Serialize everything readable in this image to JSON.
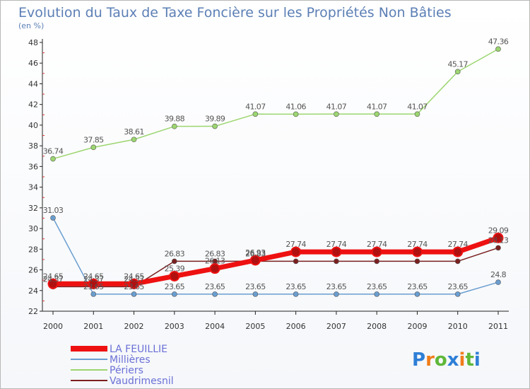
{
  "chart_data": {
    "type": "line",
    "title": "Evolution du Taux de Taxe Foncière sur les Propriétés Non Bâties",
    "subtitle": "(en %)",
    "x": [
      "2000",
      "2001",
      "2002",
      "2003",
      "2004",
      "2005",
      "2006",
      "2007",
      "2008",
      "2009",
      "2010",
      "2011"
    ],
    "ylim": [
      22,
      48
    ],
    "yticks": [
      "22",
      "24",
      "26",
      "28",
      "30",
      "32",
      "34",
      "36",
      "38",
      "40",
      "42",
      "44",
      "46",
      "48"
    ],
    "grid": false,
    "legend_position": "bottom-left",
    "series": [
      {
        "name": "Vaudrimesnil",
        "color": "#7a1f1f",
        "width": 1.5,
        "marker": 3.5,
        "values": [
          24.37,
          24.37,
          24.37,
          26.83,
          26.83,
          26.83,
          26.83,
          26.83,
          26.83,
          26.83,
          26.83,
          28.13
        ],
        "labels": [
          "24.37",
          "24.37",
          "24.37",
          "26.83",
          "26.83",
          "26.83",
          "",
          "",
          "",
          "",
          "",
          "28.13"
        ]
      },
      {
        "name": "Millières",
        "color": "#6a9ed0",
        "width": 1.5,
        "marker": 3.5,
        "values": [
          31.03,
          23.65,
          23.65,
          23.65,
          23.65,
          23.65,
          23.65,
          23.65,
          23.65,
          23.65,
          23.65,
          24.8
        ],
        "labels": [
          "31.03",
          "23.65",
          "23.65",
          "23.65",
          "23.65",
          "23.65",
          "23.65",
          "23.65",
          "23.65",
          "23.65",
          "23.65",
          "24.8"
        ]
      },
      {
        "name": "Périers",
        "color": "#9cd670",
        "width": 1.5,
        "marker": 3.5,
        "values": [
          36.74,
          37.85,
          38.61,
          39.88,
          39.89,
          41.07,
          41.06,
          41.07,
          41.07,
          41.07,
          45.17,
          47.36
        ],
        "labels": [
          "36.74",
          "37.85",
          "38.61",
          "39.88",
          "39.89",
          "41.07",
          "41.06",
          "41.07",
          "41.07",
          "41.07",
          "45.17",
          "47.36"
        ]
      },
      {
        "name": "LA FEUILLIE",
        "color": "#ee1111",
        "width": 7,
        "marker": 6.5,
        "values": [
          24.65,
          24.65,
          24.65,
          25.39,
          26.13,
          26.93,
          27.74,
          27.74,
          27.74,
          27.74,
          27.74,
          29.09
        ],
        "labels": [
          "24.65",
          "24.65",
          "24.65",
          "25.39",
          "26.13",
          "26.93",
          "27.74",
          "27.74",
          "27.74",
          "27.74",
          "27.74",
          "29.09"
        ]
      }
    ],
    "legend": [
      "LA FEUILLIE",
      "Millières",
      "Périers",
      "Vaudrimesnil"
    ]
  },
  "legend_colors": {
    "LA FEUILLIE": "#ee1111",
    "Millières": "#6a9ed0",
    "Périers": "#9cd670",
    "Vaudrimesnil": "#7a1f1f"
  },
  "logo": {
    "letters": [
      "P",
      "r",
      "o",
      "x",
      "i",
      "t",
      "i"
    ],
    "colors": [
      "#2e7fd6",
      "#f07d1a",
      "#5fb838",
      "#2e7fd6",
      "#f07d1a",
      "#5fb838",
      "#2e7fd6"
    ]
  }
}
